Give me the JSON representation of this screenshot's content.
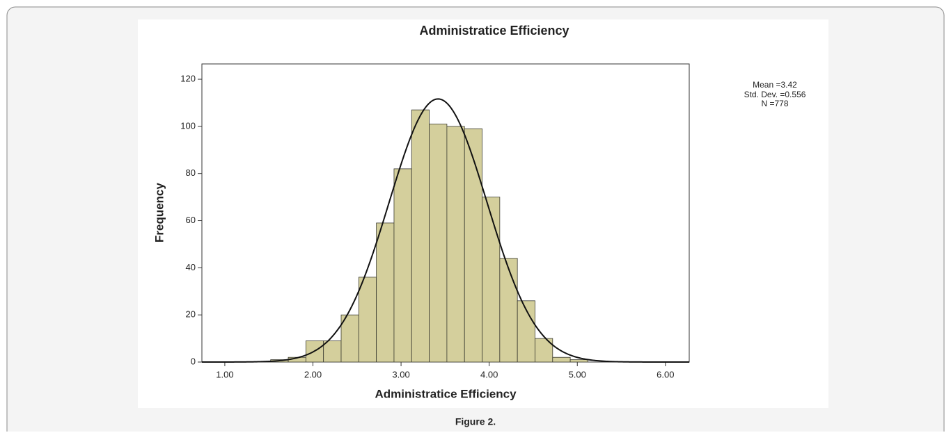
{
  "chart_data": {
    "type": "histogram",
    "title": "Administratice Efficiency",
    "x_label": "Administratice Efficiency",
    "y_label": "Frequency",
    "bins": [
      1.52,
      1.72,
      1.92,
      2.12,
      2.32,
      2.52,
      2.72,
      2.92,
      3.12,
      3.32,
      3.52,
      3.72,
      3.92,
      4.12,
      4.32,
      4.52,
      4.72,
      4.92,
      5.12
    ],
    "values": [
      1,
      2,
      9,
      9,
      20,
      36,
      59,
      82,
      107,
      101,
      100,
      99,
      70,
      44,
      26,
      10,
      2,
      1
    ],
    "color": "#d4cf9c",
    "curve_color": "#111111",
    "mean": {
      "value": 3.42,
      "label": "Mean =3.42"
    },
    "std_dev": {
      "value": 0.556,
      "label": "Std. Dev. =0.556"
    },
    "n": {
      "value": 778,
      "label": "N =778"
    },
    "xlim": [
      0.74,
      6.27
    ],
    "ylim": [
      0,
      126.5
    ],
    "xticks": [
      {
        "value": 1,
        "label": "1.00"
      },
      {
        "value": 2,
        "label": "2.00"
      },
      {
        "value": 3,
        "label": "3.00"
      },
      {
        "value": 4,
        "label": "4.00"
      },
      {
        "value": 5,
        "label": "5.00"
      },
      {
        "value": 6,
        "label": "6.00"
      }
    ],
    "yticks": [
      0,
      20,
      40,
      60,
      80,
      100,
      120
    ]
  },
  "caption": "Figure 2."
}
